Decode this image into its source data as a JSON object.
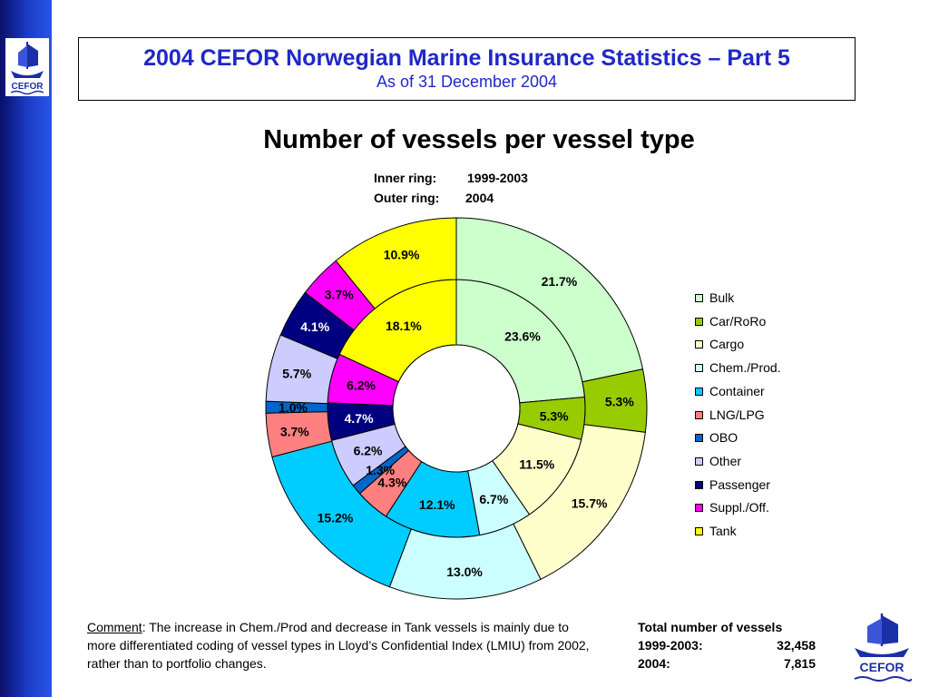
{
  "header": {
    "title": "2004 CEFOR Norwegian Marine Insurance Statistics – Part 5",
    "subtitle": "As of 31 December 2004"
  },
  "logo": {
    "text": "CEFOR"
  },
  "ring_notes": {
    "inner_label": "Inner ring:",
    "inner_value": "1999-2003",
    "outer_label": "Outer ring:",
    "outer_value": "2004"
  },
  "chart_data": {
    "type": "pie",
    "title": "Number of vessels per vessel type",
    "categories": [
      "Bulk",
      "Car/RoRo",
      "Cargo",
      "Chem./Prod.",
      "Container",
      "LNG/LPG",
      "OBO",
      "Other",
      "Passenger",
      "Suppl./Off.",
      "Tank"
    ],
    "colors": [
      "#ccffcc",
      "#99cc00",
      "#ffffcc",
      "#ccffff",
      "#00ccff",
      "#ff8080",
      "#0066cc",
      "#ccccff",
      "#000080",
      "#ff00ff",
      "#ffff00"
    ],
    "series": [
      {
        "name": "Inner ring: 1999-2003",
        "values": [
          23.6,
          5.3,
          11.5,
          6.7,
          12.1,
          4.3,
          1.3,
          6.2,
          4.7,
          6.2,
          18.1
        ],
        "labels": [
          "23.6%",
          "5.3%",
          "11.5%",
          "6.7%",
          "12.1%",
          "4.3%",
          "1.3%",
          "6.2%",
          "4.7%",
          "6.2%",
          "18.1%"
        ]
      },
      {
        "name": "Outer ring: 2004",
        "values": [
          21.7,
          5.3,
          15.7,
          13.0,
          15.2,
          3.7,
          1.0,
          5.7,
          4.1,
          3.7,
          10.9
        ],
        "labels": [
          "21.7%",
          "5.3%",
          "15.7%",
          "13.0%",
          "15.2%",
          "3.7%",
          "1.0%",
          "5.7%",
          "4.1%",
          "3.7%",
          "10.9%"
        ]
      }
    ],
    "legend_position": "right"
  },
  "comment": {
    "label": "Comment",
    "text": ": The increase in Chem./Prod and decrease in Tank vessels is mainly due to more differentiated coding of vessel types in Lloyd’s Confidential Index (LMIU) from 2002, rather than to portfolio changes."
  },
  "totals": {
    "title": "Total number of vessels",
    "rows": [
      {
        "label": "1999-2003:",
        "value": "32,458"
      },
      {
        "label": "2004:",
        "value": "7,815"
      }
    ]
  }
}
